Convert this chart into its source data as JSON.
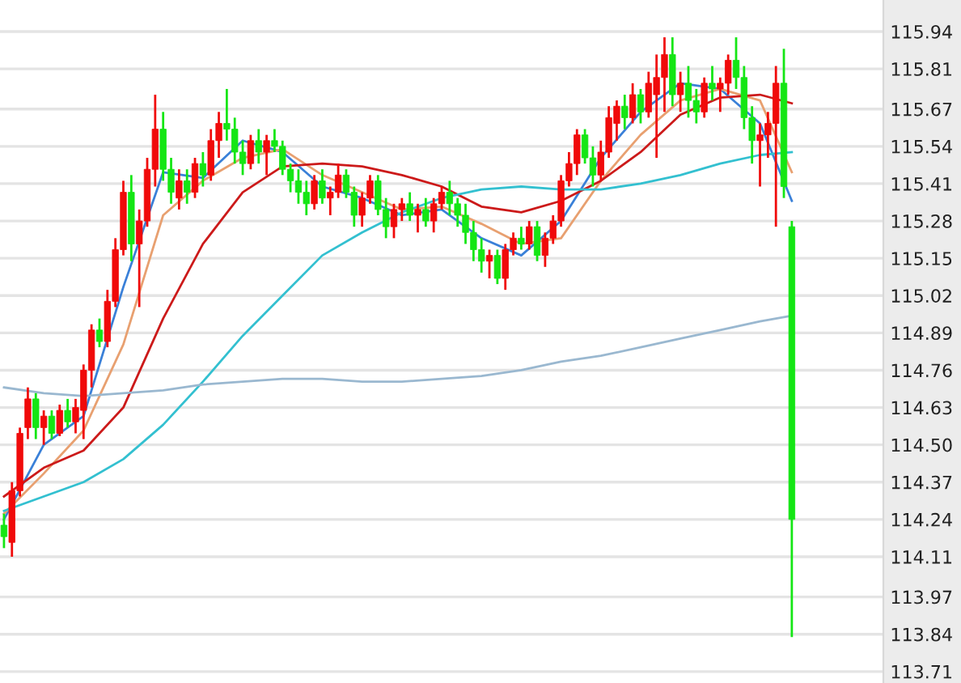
{
  "chart_data": {
    "type": "candlestick",
    "categories": [
      null,
      null,
      null,
      null,
      null,
      null,
      null,
      null,
      null,
      null,
      null,
      null,
      null,
      null,
      null,
      null,
      null,
      null,
      null,
      null,
      null,
      null,
      null,
      null,
      null,
      null,
      null,
      null,
      null,
      null,
      null,
      null,
      null,
      null,
      null,
      null,
      null,
      null,
      null,
      null,
      null,
      null,
      null,
      null,
      null,
      null,
      null,
      null,
      null,
      null,
      null,
      null,
      null,
      null,
      null,
      null,
      null,
      null,
      null,
      null,
      null,
      null,
      null,
      null,
      null,
      null,
      null,
      null,
      null,
      null,
      null,
      null,
      null,
      null,
      null,
      null,
      null,
      null,
      null,
      null,
      null,
      null,
      null,
      null,
      null,
      null,
      null,
      null,
      null,
      null,
      null,
      null,
      null,
      null,
      null,
      null,
      null,
      null,
      null,
      null,
      null,
      null,
      null,
      null,
      null,
      null,
      null,
      null,
      null,
      null,
      null
    ],
    "ohlc": [
      [
        114.22,
        114.26,
        114.14,
        114.18
      ],
      [
        114.16,
        114.37,
        114.11,
        114.34
      ],
      [
        114.34,
        114.56,
        114.32,
        114.54
      ],
      [
        114.56,
        114.7,
        114.52,
        114.66
      ],
      [
        114.66,
        114.68,
        114.52,
        114.56
      ],
      [
        114.56,
        114.62,
        114.5,
        114.6
      ],
      [
        114.6,
        114.62,
        114.52,
        114.54
      ],
      [
        114.54,
        114.64,
        114.53,
        114.62
      ],
      [
        114.62,
        114.66,
        114.56,
        114.58
      ],
      [
        114.58,
        114.66,
        114.54,
        114.63
      ],
      [
        114.62,
        114.78,
        114.52,
        114.76
      ],
      [
        114.76,
        114.92,
        114.7,
        114.9
      ],
      [
        114.9,
        114.94,
        114.84,
        114.86
      ],
      [
        114.86,
        115.04,
        114.84,
        115.0
      ],
      [
        115.0,
        115.22,
        114.98,
        115.18
      ],
      [
        115.18,
        115.42,
        115.16,
        115.38
      ],
      [
        115.38,
        115.44,
        115.14,
        115.2
      ],
      [
        115.2,
        115.32,
        114.98,
        115.28
      ],
      [
        115.28,
        115.5,
        115.26,
        115.46
      ],
      [
        115.46,
        115.72,
        115.4,
        115.6
      ],
      [
        115.6,
        115.66,
        115.42,
        115.46
      ],
      [
        115.46,
        115.5,
        115.34,
        115.38
      ],
      [
        115.36,
        115.46,
        115.32,
        115.42
      ],
      [
        115.42,
        115.46,
        115.34,
        115.38
      ],
      [
        115.38,
        115.5,
        115.36,
        115.48
      ],
      [
        115.48,
        115.52,
        115.4,
        115.44
      ],
      [
        115.44,
        115.6,
        115.42,
        115.56
      ],
      [
        115.56,
        115.66,
        115.5,
        115.62
      ],
      [
        115.62,
        115.74,
        115.56,
        115.6
      ],
      [
        115.6,
        115.64,
        115.48,
        115.52
      ],
      [
        115.52,
        115.56,
        115.44,
        115.48
      ],
      [
        115.48,
        115.58,
        115.46,
        115.56
      ],
      [
        115.56,
        115.6,
        115.48,
        115.52
      ],
      [
        115.52,
        115.58,
        115.44,
        115.56
      ],
      [
        115.56,
        115.6,
        115.52,
        115.54
      ],
      [
        115.54,
        115.56,
        115.44,
        115.46
      ],
      [
        115.46,
        115.48,
        115.38,
        115.42
      ],
      [
        115.42,
        115.46,
        115.34,
        115.38
      ],
      [
        115.38,
        115.42,
        115.3,
        115.34
      ],
      [
        115.34,
        115.44,
        115.32,
        115.42
      ],
      [
        115.42,
        115.46,
        115.34,
        115.36
      ],
      [
        115.36,
        115.4,
        115.3,
        115.38
      ],
      [
        115.38,
        115.48,
        115.36,
        115.44
      ],
      [
        115.44,
        115.46,
        115.36,
        115.38
      ],
      [
        115.38,
        115.4,
        115.26,
        115.3
      ],
      [
        115.3,
        115.38,
        115.26,
        115.36
      ],
      [
        115.36,
        115.44,
        115.34,
        115.42
      ],
      [
        115.42,
        115.44,
        115.3,
        115.32
      ],
      [
        115.32,
        115.36,
        115.22,
        115.26
      ],
      [
        115.26,
        115.34,
        115.22,
        115.32
      ],
      [
        115.32,
        115.36,
        115.28,
        115.34
      ],
      [
        115.34,
        115.38,
        115.28,
        115.3
      ],
      [
        115.3,
        115.34,
        115.24,
        115.32
      ],
      [
        115.32,
        115.36,
        115.26,
        115.28
      ],
      [
        115.28,
        115.36,
        115.24,
        115.34
      ],
      [
        115.34,
        115.4,
        115.32,
        115.38
      ],
      [
        115.38,
        115.42,
        115.3,
        115.34
      ],
      [
        115.34,
        115.36,
        115.26,
        115.3
      ],
      [
        115.3,
        115.34,
        115.2,
        115.24
      ],
      [
        115.24,
        115.28,
        115.14,
        115.18
      ],
      [
        115.18,
        115.22,
        115.1,
        115.14
      ],
      [
        115.14,
        115.18,
        115.08,
        115.16
      ],
      [
        115.16,
        115.18,
        115.06,
        115.08
      ],
      [
        115.08,
        115.2,
        115.04,
        115.18
      ],
      [
        115.18,
        115.24,
        115.16,
        115.22
      ],
      [
        115.22,
        115.26,
        115.18,
        115.2
      ],
      [
        115.2,
        115.28,
        115.18,
        115.26
      ],
      [
        115.26,
        115.28,
        115.14,
        115.16
      ],
      [
        115.16,
        115.24,
        115.12,
        115.22
      ],
      [
        115.22,
        115.3,
        115.2,
        115.28
      ],
      [
        115.28,
        115.44,
        115.26,
        115.42
      ],
      [
        115.42,
        115.52,
        115.4,
        115.48
      ],
      [
        115.48,
        115.6,
        115.44,
        115.58
      ],
      [
        115.58,
        115.6,
        115.48,
        115.5
      ],
      [
        115.5,
        115.54,
        115.4,
        115.44
      ],
      [
        115.44,
        115.56,
        115.42,
        115.52
      ],
      [
        115.52,
        115.68,
        115.5,
        115.64
      ],
      [
        115.62,
        115.7,
        115.56,
        115.68
      ],
      [
        115.68,
        115.72,
        115.6,
        115.64
      ],
      [
        115.64,
        115.76,
        115.62,
        115.72
      ],
      [
        115.72,
        115.74,
        115.62,
        115.66
      ],
      [
        115.66,
        115.8,
        115.64,
        115.76
      ],
      [
        115.72,
        115.86,
        115.5,
        115.78
      ],
      [
        115.78,
        115.92,
        115.66,
        115.86
      ],
      [
        115.86,
        115.92,
        115.68,
        115.72
      ],
      [
        115.72,
        115.8,
        115.66,
        115.76
      ],
      [
        115.76,
        115.82,
        115.64,
        115.7
      ],
      [
        115.7,
        115.74,
        115.62,
        115.66
      ],
      [
        115.66,
        115.78,
        115.64,
        115.76
      ],
      [
        115.76,
        115.82,
        115.7,
        115.74
      ],
      [
        115.74,
        115.78,
        115.66,
        115.76
      ],
      [
        115.76,
        115.86,
        115.72,
        115.84
      ],
      [
        115.84,
        115.92,
        115.74,
        115.78
      ],
      [
        115.78,
        115.82,
        115.6,
        115.64
      ],
      [
        115.64,
        115.68,
        115.48,
        115.56
      ],
      [
        115.56,
        115.62,
        115.4,
        115.58
      ],
      [
        115.58,
        115.66,
        115.5,
        115.62
      ],
      [
        115.62,
        115.82,
        115.26,
        115.76
      ],
      [
        115.76,
        115.88,
        115.36,
        115.4
      ],
      [
        115.26,
        115.28,
        113.83,
        114.24
      ],
      null,
      null,
      null,
      null,
      null,
      null,
      null,
      null,
      null,
      null,
      null
    ],
    "colors": [
      "#14e614",
      "#f00a0a",
      "#f00a0a",
      "#f00a0a",
      "#14e614",
      "#f00a0a",
      "#14e614",
      "#f00a0a",
      "#14e614",
      "#f00a0a",
      "#f00a0a",
      "#f00a0a",
      "#14e614",
      "#f00a0a",
      "#f00a0a",
      "#f00a0a",
      "#14e614",
      "#f00a0a",
      "#f00a0a",
      "#f00a0a",
      "#14e614",
      "#14e614",
      "#f00a0a",
      "#14e614",
      "#f00a0a",
      "#14e614",
      "#f00a0a",
      "#f00a0a",
      "#14e614",
      "#14e614",
      "#14e614",
      "#f00a0a",
      "#14e614",
      "#f00a0a",
      "#14e614",
      "#14e614",
      "#14e614",
      "#14e614",
      "#14e614",
      "#f00a0a",
      "#14e614",
      "#f00a0a",
      "#f00a0a",
      "#14e614",
      "#14e614",
      "#f00a0a",
      "#f00a0a",
      "#14e614",
      "#14e614",
      "#f00a0a",
      "#f00a0a",
      "#14e614",
      "#f00a0a",
      "#14e614",
      "#f00a0a",
      "#f00a0a",
      "#14e614",
      "#14e614",
      "#14e614",
      "#14e614",
      "#14e614",
      "#f00a0a",
      "#14e614",
      "#f00a0a",
      "#f00a0a",
      "#14e614",
      "#f00a0a",
      "#14e614",
      "#f00a0a",
      "#f00a0a",
      "#f00a0a",
      "#f00a0a",
      "#f00a0a",
      "#14e614",
      "#14e614",
      "#f00a0a",
      "#f00a0a",
      "#f00a0a",
      "#14e614",
      "#f00a0a",
      "#14e614",
      "#f00a0a",
      "#f00a0a",
      "#f00a0a",
      "#14e614",
      "#f00a0a",
      "#14e614",
      "#14e614",
      "#f00a0a",
      "#14e614",
      "#f00a0a",
      "#f00a0a",
      "#14e614",
      "#14e614",
      "#14e614",
      "#f00a0a",
      "#f00a0a",
      "#f00a0a",
      "#14e614",
      "#14e614",
      null,
      null,
      null,
      null,
      null,
      null,
      null,
      null,
      null,
      null,
      null
    ],
    "series": [
      {
        "type": "line",
        "color": "#3a80d8",
        "values": [
          114.24,
          null,
          null,
          null,
          null,
          114.5,
          null,
          null,
          null,
          null,
          114.6,
          null,
          null,
          null,
          null,
          115.05,
          null,
          null,
          null,
          null,
          115.45,
          null,
          null,
          null,
          null,
          115.43,
          null,
          null,
          null,
          null,
          115.56,
          null,
          null,
          null,
          null,
          115.52,
          null,
          null,
          null,
          null,
          115.4,
          null,
          null,
          null,
          null,
          115.36,
          null,
          null,
          null,
          null,
          115.3,
          null,
          null,
          null,
          null,
          115.32,
          null,
          null,
          null,
          null,
          115.22,
          null,
          null,
          null,
          null,
          115.16,
          null,
          null,
          null,
          null,
          115.28,
          null,
          null,
          null,
          null,
          115.5,
          null,
          null,
          null,
          null,
          115.66,
          null,
          null,
          null,
          null,
          115.76,
          null,
          null,
          null,
          null,
          115.74,
          null,
          null,
          null,
          null,
          115.62,
          null,
          null,
          null,
          115.35,
          null,
          null,
          null,
          null,
          null,
          null,
          null,
          null,
          null,
          null,
          null
        ]
      },
      {
        "type": "line",
        "color": "#e8a070",
        "values": [
          114.26,
          null,
          null,
          null,
          null,
          114.4,
          null,
          null,
          null,
          null,
          114.55,
          null,
          null,
          null,
          null,
          114.85,
          null,
          null,
          null,
          null,
          115.3,
          null,
          null,
          null,
          null,
          115.42,
          null,
          null,
          null,
          null,
          115.5,
          null,
          null,
          null,
          null,
          115.53,
          null,
          null,
          null,
          null,
          115.44,
          null,
          null,
          null,
          null,
          115.38,
          null,
          null,
          null,
          null,
          115.32,
          null,
          null,
          null,
          null,
          115.33,
          null,
          null,
          null,
          null,
          115.27,
          null,
          null,
          null,
          null,
          115.2,
          null,
          null,
          null,
          null,
          115.22,
          null,
          null,
          null,
          null,
          115.42,
          null,
          null,
          null,
          null,
          115.58,
          null,
          null,
          null,
          null,
          115.7,
          null,
          null,
          null,
          null,
          115.74,
          null,
          null,
          null,
          null,
          115.7,
          null,
          null,
          null,
          115.45,
          null,
          null,
          null,
          null,
          null,
          null,
          null,
          null,
          null,
          null,
          null
        ]
      },
      {
        "type": "line",
        "color": "#cc1a1a",
        "values": [
          114.32,
          null,
          null,
          null,
          null,
          114.42,
          null,
          null,
          null,
          null,
          114.48,
          null,
          null,
          null,
          null,
          114.63,
          null,
          null,
          null,
          null,
          114.94,
          null,
          null,
          null,
          null,
          115.2,
          null,
          null,
          null,
          null,
          115.38,
          null,
          null,
          null,
          null,
          115.47,
          null,
          null,
          null,
          null,
          115.48,
          null,
          null,
          null,
          null,
          115.47,
          null,
          null,
          null,
          null,
          115.44,
          null,
          null,
          null,
          null,
          115.4,
          null,
          null,
          null,
          null,
          115.33,
          null,
          null,
          null,
          null,
          115.31,
          null,
          null,
          null,
          null,
          115.35,
          null,
          null,
          null,
          null,
          115.42,
          null,
          null,
          null,
          null,
          115.52,
          null,
          null,
          null,
          null,
          115.65,
          null,
          null,
          null,
          null,
          115.71,
          null,
          null,
          null,
          null,
          115.72,
          null,
          null,
          null,
          115.69,
          null,
          null,
          null,
          null,
          null,
          null,
          null,
          null,
          null,
          null,
          null
        ]
      },
      {
        "type": "line",
        "color": "#33c0d0",
        "values": [
          114.27,
          null,
          null,
          null,
          null,
          114.32,
          null,
          null,
          null,
          null,
          114.37,
          null,
          null,
          null,
          null,
          114.45,
          null,
          null,
          null,
          null,
          114.57,
          null,
          null,
          null,
          null,
          114.72,
          null,
          null,
          null,
          null,
          114.88,
          null,
          null,
          null,
          null,
          115.02,
          null,
          null,
          null,
          null,
          115.16,
          null,
          null,
          null,
          null,
          115.24,
          null,
          null,
          null,
          null,
          115.31,
          null,
          null,
          null,
          null,
          115.36,
          null,
          null,
          null,
          null,
          115.39,
          null,
          null,
          null,
          null,
          115.4,
          null,
          null,
          null,
          null,
          115.39,
          null,
          null,
          null,
          null,
          115.39,
          null,
          null,
          null,
          null,
          115.41,
          null,
          null,
          null,
          null,
          115.44,
          null,
          null,
          null,
          null,
          115.48,
          null,
          null,
          null,
          null,
          115.51,
          null,
          null,
          null,
          115.52,
          null,
          null,
          null,
          null,
          null,
          null,
          null,
          null,
          null,
          null,
          null
        ]
      },
      {
        "type": "line",
        "color": "#9ab8d0",
        "values": [
          114.7,
          null,
          null,
          null,
          null,
          114.68,
          null,
          null,
          null,
          null,
          114.67,
          null,
          null,
          null,
          null,
          114.68,
          null,
          null,
          null,
          null,
          114.69,
          null,
          null,
          null,
          null,
          114.71,
          null,
          null,
          null,
          null,
          114.72,
          null,
          null,
          null,
          null,
          114.73,
          null,
          null,
          null,
          null,
          114.73,
          null,
          null,
          null,
          null,
          114.72,
          null,
          null,
          null,
          null,
          114.72,
          null,
          null,
          null,
          null,
          114.73,
          null,
          null,
          null,
          null,
          114.74,
          null,
          null,
          null,
          null,
          114.76,
          null,
          null,
          null,
          null,
          114.79,
          null,
          null,
          null,
          null,
          114.81,
          null,
          null,
          null,
          null,
          114.84,
          null,
          null,
          null,
          null,
          114.87,
          null,
          null,
          null,
          null,
          114.9,
          null,
          null,
          null,
          null,
          114.93,
          null,
          null,
          null,
          114.95,
          null,
          null,
          null,
          null,
          null,
          null,
          null,
          null,
          null,
          null,
          null
        ]
      }
    ],
    "ylim": [
      113.71,
      116.05
    ],
    "yticks": [
      {
        "value": 115.94,
        "label": "115.94"
      },
      {
        "value": 115.81,
        "label": "115.81"
      },
      {
        "value": 115.67,
        "label": "115.67"
      },
      {
        "value": 115.54,
        "label": "115.54"
      },
      {
        "value": 115.41,
        "label": "115.41"
      },
      {
        "value": 115.28,
        "label": "115.28"
      },
      {
        "value": 115.15,
        "label": "115.15"
      },
      {
        "value": 115.02,
        "label": "115.02"
      },
      {
        "value": 114.89,
        "label": "114.89"
      },
      {
        "value": 114.76,
        "label": "114.76"
      },
      {
        "value": 114.63,
        "label": "114.63"
      },
      {
        "value": 114.5,
        "label": "114.50"
      },
      {
        "value": 114.37,
        "label": "114.37"
      },
      {
        "value": 114.24,
        "label": "114.24"
      },
      {
        "value": 114.11,
        "label": "114.11"
      },
      {
        "value": 113.97,
        "label": "113.97"
      },
      {
        "value": 113.84,
        "label": "113.84"
      },
      {
        "value": 113.71,
        "label": "113.71"
      }
    ],
    "grid": "y",
    "tick_labels": "y",
    "legend": false
  }
}
